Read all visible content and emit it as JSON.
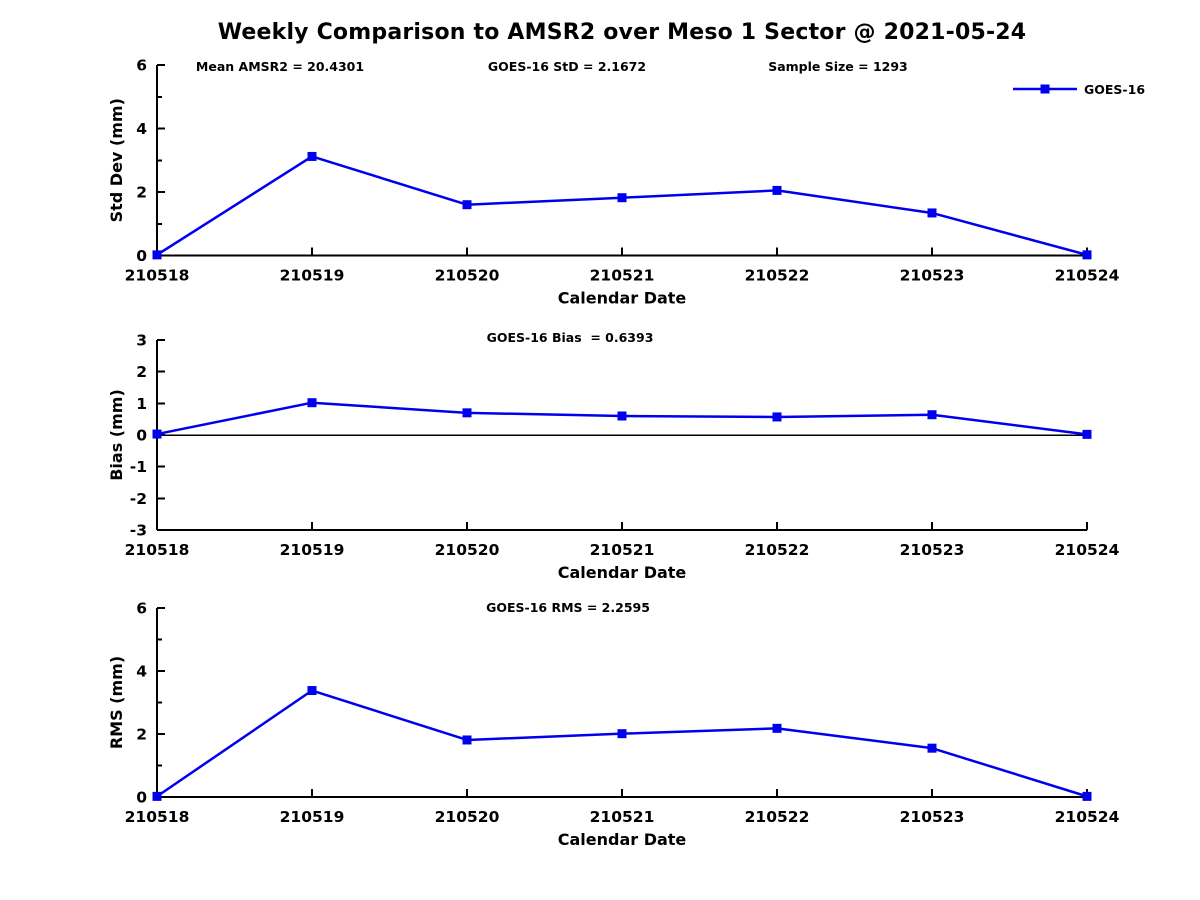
{
  "title": "Weekly Comparison to AMSR2 over Meso 1 Sector @ 2021-05-24",
  "legend": {
    "label": "GOES-16",
    "position": "top-right"
  },
  "colors": {
    "series": "#0000EE",
    "axis": "#000000",
    "text": "#000000",
    "background": "#FFFFFF"
  },
  "x_axis": {
    "label": "Calendar Date",
    "categories": [
      "210518",
      "210519",
      "210520",
      "210521",
      "210522",
      "210523",
      "210524"
    ]
  },
  "chart_data": [
    {
      "type": "line",
      "id": "std-dev",
      "ylabel": "Std Dev (mm)",
      "xlabel": "Calendar Date",
      "ylim": [
        0,
        6
      ],
      "yticks": [
        0,
        2,
        4,
        6
      ],
      "minor_yticks": [
        1,
        3,
        5
      ],
      "grid": false,
      "zero_line": false,
      "annotations": [
        "Mean AMSR2 = 20.4301",
        "GOES-16 StD = 2.1672",
        "Sample Size = 1293"
      ],
      "categories": [
        "210518",
        "210519",
        "210520",
        "210521",
        "210522",
        "210523",
        "210524"
      ],
      "series": [
        {
          "name": "GOES-16",
          "values": [
            0.02,
            3.12,
            1.6,
            1.82,
            2.05,
            1.34,
            0.02
          ]
        }
      ]
    },
    {
      "type": "line",
      "id": "bias",
      "ylabel": "Bias (mm)",
      "xlabel": "Calendar Date",
      "ylim": [
        -3,
        3
      ],
      "yticks": [
        -3,
        -2,
        -1,
        0,
        1,
        2,
        3
      ],
      "minor_yticks": [],
      "grid": false,
      "zero_line": true,
      "annotations": [
        "GOES-16 Bias  = 0.6393"
      ],
      "categories": [
        "210518",
        "210519",
        "210520",
        "210521",
        "210522",
        "210523",
        "210524"
      ],
      "series": [
        {
          "name": "GOES-16",
          "values": [
            0.03,
            1.02,
            0.7,
            0.6,
            0.57,
            0.64,
            0.02
          ]
        }
      ]
    },
    {
      "type": "line",
      "id": "rms",
      "ylabel": "RMS (mm)",
      "xlabel": "Calendar Date",
      "ylim": [
        0,
        6
      ],
      "yticks": [
        0,
        2,
        4,
        6
      ],
      "minor_yticks": [
        1,
        3,
        5
      ],
      "grid": false,
      "zero_line": false,
      "annotations": [
        "GOES-16 RMS = 2.2595"
      ],
      "categories": [
        "210518",
        "210519",
        "210520",
        "210521",
        "210522",
        "210523",
        "210524"
      ],
      "series": [
        {
          "name": "GOES-16",
          "values": [
            0.02,
            3.38,
            1.81,
            2.01,
            2.18,
            1.55,
            0.02
          ]
        }
      ]
    }
  ]
}
